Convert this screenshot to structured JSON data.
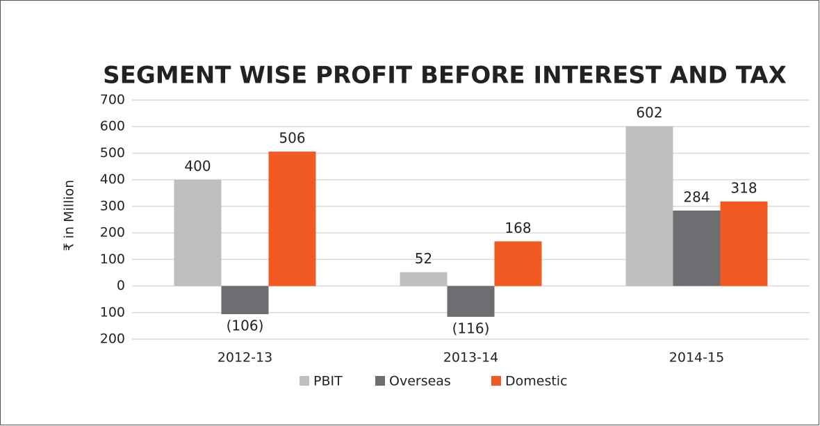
{
  "chart_data": {
    "type": "bar",
    "title": "SEGMENT WISE PROFIT BEFORE INTEREST AND TAX",
    "y_label": "₹ in Million",
    "categories": [
      "2012-13",
      "2013-14",
      "2014-15"
    ],
    "series": [
      {
        "name": "PBIT",
        "color": "#bfbfbf",
        "values": [
          400,
          52,
          602
        ]
      },
      {
        "name": "Overseas",
        "color": "#6d6e71",
        "values": [
          -106,
          -116,
          284
        ],
        "value_labels": [
          "(106)",
          "(116)",
          "284"
        ]
      },
      {
        "name": "Domestic",
        "color": "#f15a22",
        "values": [
          506,
          168,
          318
        ]
      }
    ],
    "ylim": [
      -200,
      700
    ],
    "yticks": [
      {
        "value": -200,
        "label": "200"
      },
      {
        "value": -100,
        "label": "100"
      },
      0,
      100,
      200,
      300,
      400,
      500,
      600,
      700
    ],
    "grid": true,
    "legend": "bottom"
  }
}
